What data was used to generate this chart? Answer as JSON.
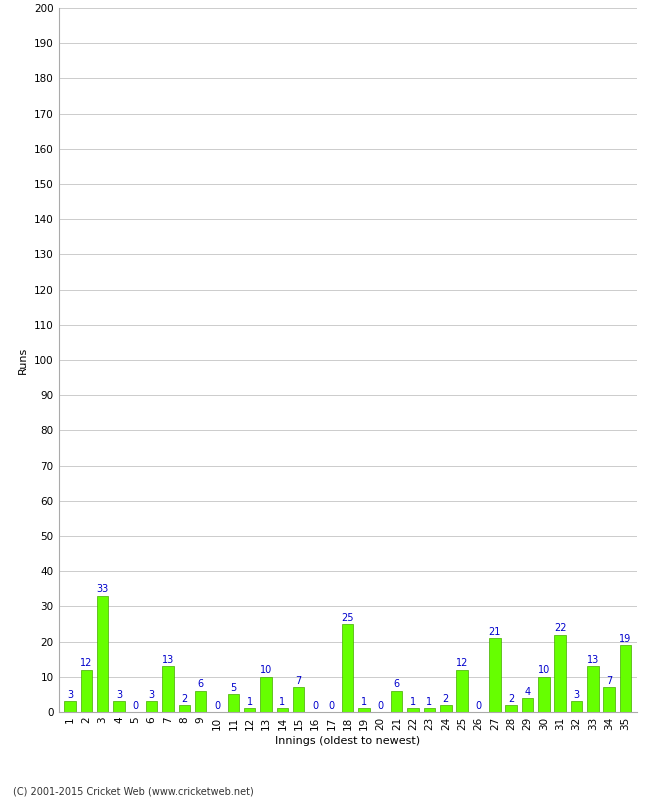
{
  "xlabel": "Innings (oldest to newest)",
  "ylabel": "Runs",
  "footer": "(C) 2001-2015 Cricket Web (www.cricketweb.net)",
  "innings": [
    1,
    2,
    3,
    4,
    5,
    6,
    7,
    8,
    9,
    10,
    11,
    12,
    13,
    14,
    15,
    16,
    17,
    18,
    19,
    20,
    21,
    22,
    23,
    24,
    25,
    26,
    27,
    28,
    29,
    30,
    31,
    32,
    33,
    34,
    35
  ],
  "values": [
    3,
    12,
    33,
    3,
    0,
    3,
    13,
    2,
    6,
    0,
    5,
    1,
    10,
    1,
    7,
    0,
    0,
    25,
    1,
    0,
    6,
    1,
    1,
    2,
    12,
    0,
    21,
    2,
    4,
    10,
    22,
    3,
    13,
    7,
    19
  ],
  "bar_color": "#66ff00",
  "bar_edge_color": "#44aa00",
  "label_color": "#0000cc",
  "background_color": "#ffffff",
  "plot_bg_color": "#ffffff",
  "grid_color": "#cccccc",
  "ylim": [
    0,
    200
  ],
  "yticks": [
    0,
    10,
    20,
    30,
    40,
    50,
    60,
    70,
    80,
    90,
    100,
    110,
    120,
    130,
    140,
    150,
    160,
    170,
    180,
    190,
    200
  ],
  "axis_label_fontsize": 8,
  "tick_fontsize": 7.5,
  "value_label_fontsize": 7
}
